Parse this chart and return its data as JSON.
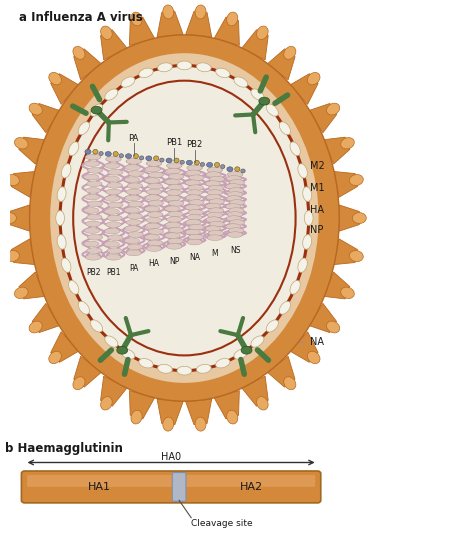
{
  "title_a": "a Influenza A virus",
  "title_b": "b Haemagglutinin",
  "ha0_label": "HA0",
  "ha1_label": "HA1",
  "ha2_label": "HA2",
  "cleavage_label": "Cleavage site",
  "bg_color": "#ffffff",
  "outer_orange": "#d4893a",
  "outer_orange_light": "#e8aa60",
  "outer_orange_dark": "#b86820",
  "inner_tan": "#e8c8a0",
  "bilayer_edge": "#9a3010",
  "interior_bg": "#f0ece0",
  "bead_white": "#f5f2ea",
  "bead_edge": "#c0a870",
  "rna_strand": "#c8a0b8",
  "np_bead_fill": "#ddc8c0",
  "np_bead_edge": "#b09090",
  "poly_blue": "#7080b0",
  "poly_gold": "#d4a830",
  "poly_gray": "#9090a8",
  "m2_green": "#4a7a40",
  "m2_dark": "#2a5020",
  "text_dark": "#1a1a1a",
  "label_line": "#909090",
  "arrow_color": "#303030",
  "ha_bar_fill": "#d4893a",
  "ha_bar_edge": "#a06820",
  "ha_bar_light": "#e8aa70",
  "cleavage_fill": "#b0b8c8",
  "cleavage_edge": "#8090a8"
}
